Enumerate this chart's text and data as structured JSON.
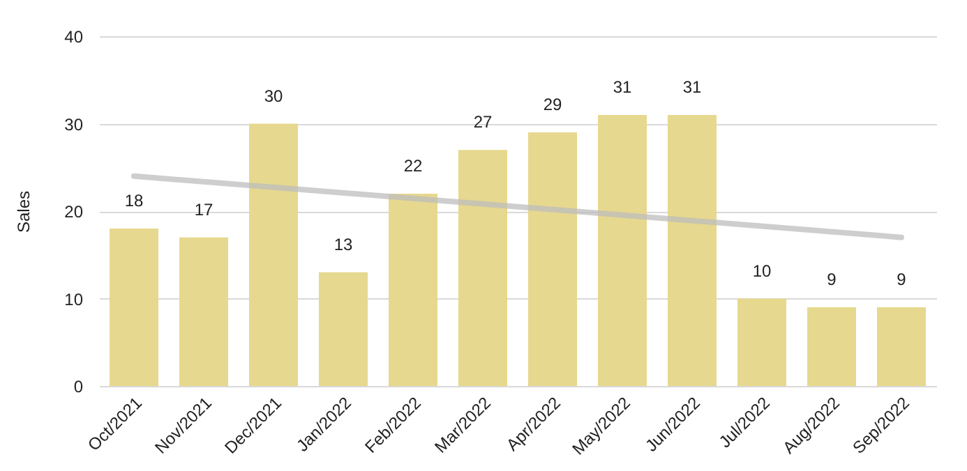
{
  "chart_data": {
    "type": "bar",
    "ylabel": "Sales",
    "categories": [
      "Oct/2021",
      "Nov/2021",
      "Dec/2021",
      "Jan/2022",
      "Feb/2022",
      "Mar/2022",
      "Apr/2022",
      "May/2022",
      "Jun/2022",
      "Jul/2022",
      "Aug/2022",
      "Sep/2022"
    ],
    "series": [
      {
        "color": "#e6d88e",
        "values": [
          18,
          17,
          30,
          13,
          22,
          27,
          29,
          31,
          31,
          10,
          9,
          9
        ],
        "value_labels": [
          "18",
          "17",
          "30",
          "13",
          "22",
          "27",
          "29",
          "31",
          "31",
          "10",
          "9",
          "9"
        ]
      },
      {
        "type": "line",
        "color": "#bdbdbd",
        "x": [
          "Oct/2021",
          "Sep/2022"
        ],
        "values": [
          24,
          17
        ]
      }
    ],
    "ylim": [
      0,
      40
    ],
    "yticks": [
      0,
      10,
      20,
      30,
      40
    ],
    "grid": "y"
  }
}
